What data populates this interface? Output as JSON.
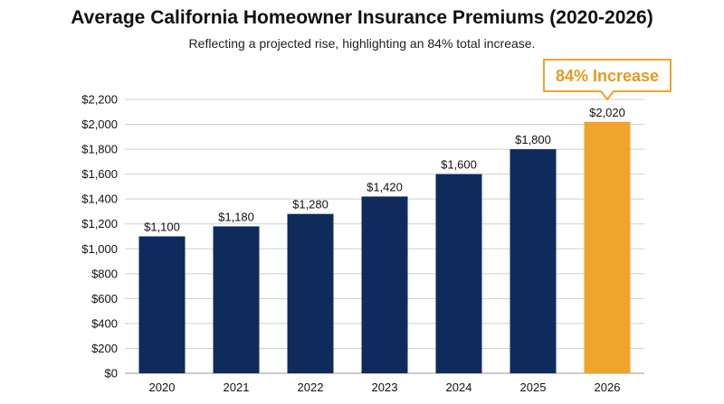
{
  "title": "Average California Homeowner Insurance Premiums (2020-2026)",
  "subtitle": "Reflecting a projected rise, highlighting an 84% total increase.",
  "colors": {
    "bar": "#0f2b5b",
    "highlight": "#f0a42b",
    "callout_text": "#e39b1e",
    "grid": "#cfcfcf"
  },
  "chart_data": {
    "type": "bar",
    "categories": [
      "2020",
      "2021",
      "2022",
      "2023",
      "2024",
      "2025",
      "2026"
    ],
    "values": [
      1100,
      1180,
      1280,
      1420,
      1600,
      1800,
      2020
    ],
    "value_labels": [
      "$1,100",
      "$1,180",
      "$1,280",
      "$1,420",
      "$1,600",
      "$1,800",
      "$2,020"
    ],
    "highlight_index": 6,
    "annotation": "84% Increase",
    "ylim": [
      0,
      2200
    ],
    "yticks": [
      0,
      200,
      400,
      600,
      800,
      1000,
      1200,
      1400,
      1600,
      1800,
      2000,
      2200
    ],
    "ytick_labels": [
      "$0",
      "$200",
      "$400",
      "$600",
      "$800",
      "$1,000",
      "$1,200",
      "$1,400",
      "$1,600",
      "$1,800",
      "$2,000",
      "$2,200"
    ],
    "grid": true
  }
}
